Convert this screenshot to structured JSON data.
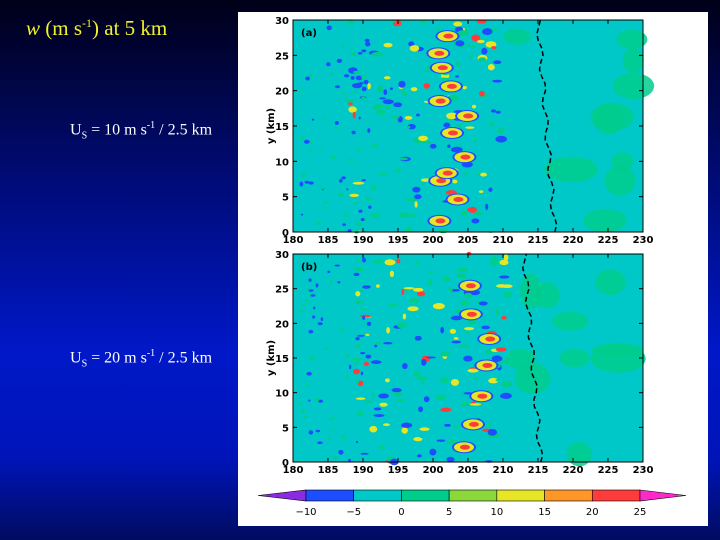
{
  "title": {
    "symbol": "w",
    "unit_open": "(m s",
    "unit_exp": "-1",
    "rest": ") at 5 km"
  },
  "labels": [
    {
      "prefix": "U",
      "sub": "S",
      "mid": " = 10 m s",
      "sup": "-1",
      "tail": " / 2.5 km"
    },
    {
      "prefix": "U",
      "sub": "S",
      "mid": " = 20 m s",
      "sup": "-1",
      "tail": " / 2.5 km"
    }
  ],
  "panels": [
    {
      "tag": "(a)",
      "ylabel": "y (km)"
    },
    {
      "tag": "(b)",
      "ylabel": "y (km)"
    }
  ],
  "x_ticks": [
    "180",
    "185",
    "190",
    "195",
    "200",
    "205",
    "210",
    "215",
    "220",
    "225",
    "230"
  ],
  "y_ticks": [
    "0",
    "5",
    "10",
    "15",
    "20",
    "25",
    "30"
  ],
  "colorbar": {
    "ticks": [
      "−10",
      "−5",
      "0",
      "5",
      "10",
      "15",
      "20",
      "25"
    ],
    "colors": [
      "#8a2be2",
      "#1e4cff",
      "#00c8c8",
      "#00cc8c",
      "#8cd83c",
      "#e6e628",
      "#ff9628",
      "#ff3c3c",
      "#ff28c8"
    ]
  },
  "colors": {
    "background_field": "#00c8c8",
    "updraft_light": "#00cc8c",
    "updraft_mid": "#e6e628",
    "updraft_high": "#ff3c3c",
    "downdraft": "#1e4cff"
  }
}
